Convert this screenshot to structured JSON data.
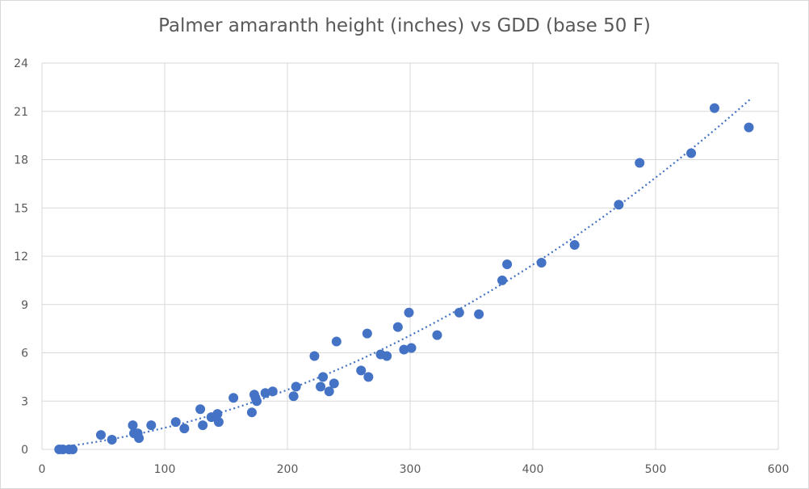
{
  "chart_data": {
    "type": "scatter",
    "title": "Palmer amaranth height (inches) vs GDD (base 50 F)",
    "xlabel": "",
    "ylabel": "",
    "xlim": [
      0,
      600
    ],
    "ylim": [
      0,
      24
    ],
    "x_ticks": [
      0,
      100,
      200,
      300,
      400,
      500,
      600
    ],
    "y_ticks": [
      0,
      3,
      6,
      9,
      12,
      15,
      18,
      21,
      24
    ],
    "grid": true,
    "legend": "none",
    "marker_color": "#4472c4",
    "trendline": {
      "type": "polynomial",
      "order": 2,
      "style": "dotted",
      "x_range": [
        15,
        577
      ]
    },
    "points": [
      {
        "x": 14,
        "y": 0
      },
      {
        "x": 17,
        "y": 0
      },
      {
        "x": 22,
        "y": 0
      },
      {
        "x": 25,
        "y": 0
      },
      {
        "x": 48,
        "y": 0.9
      },
      {
        "x": 57,
        "y": 0.6
      },
      {
        "x": 74,
        "y": 1.5
      },
      {
        "x": 75,
        "y": 1.0
      },
      {
        "x": 78,
        "y": 1.0
      },
      {
        "x": 79,
        "y": 0.7
      },
      {
        "x": 89,
        "y": 1.5
      },
      {
        "x": 109,
        "y": 1.7
      },
      {
        "x": 116,
        "y": 1.3
      },
      {
        "x": 129,
        "y": 2.5
      },
      {
        "x": 131,
        "y": 1.5
      },
      {
        "x": 138,
        "y": 2.0
      },
      {
        "x": 143,
        "y": 2.2
      },
      {
        "x": 144,
        "y": 1.7
      },
      {
        "x": 156,
        "y": 3.2
      },
      {
        "x": 171,
        "y": 2.3
      },
      {
        "x": 173,
        "y": 3.4
      },
      {
        "x": 174,
        "y": 3.2
      },
      {
        "x": 175,
        "y": 3.0
      },
      {
        "x": 182,
        "y": 3.5
      },
      {
        "x": 188,
        "y": 3.6
      },
      {
        "x": 205,
        "y": 3.3
      },
      {
        "x": 207,
        "y": 3.9
      },
      {
        "x": 222,
        "y": 5.8
      },
      {
        "x": 227,
        "y": 3.9
      },
      {
        "x": 229,
        "y": 4.5
      },
      {
        "x": 234,
        "y": 3.6
      },
      {
        "x": 238,
        "y": 4.1
      },
      {
        "x": 240,
        "y": 6.7
      },
      {
        "x": 260,
        "y": 4.9
      },
      {
        "x": 265,
        "y": 7.2
      },
      {
        "x": 266,
        "y": 4.5
      },
      {
        "x": 276,
        "y": 5.9
      },
      {
        "x": 281,
        "y": 5.8
      },
      {
        "x": 290,
        "y": 7.6
      },
      {
        "x": 295,
        "y": 6.2
      },
      {
        "x": 299,
        "y": 8.5
      },
      {
        "x": 301,
        "y": 6.3
      },
      {
        "x": 322,
        "y": 7.1
      },
      {
        "x": 340,
        "y": 8.5
      },
      {
        "x": 356,
        "y": 8.4
      },
      {
        "x": 375,
        "y": 10.5
      },
      {
        "x": 379,
        "y": 11.5
      },
      {
        "x": 407,
        "y": 11.6
      },
      {
        "x": 434,
        "y": 12.7
      },
      {
        "x": 470,
        "y": 15.2
      },
      {
        "x": 487,
        "y": 17.8
      },
      {
        "x": 529,
        "y": 18.4
      },
      {
        "x": 548,
        "y": 21.2
      },
      {
        "x": 576,
        "y": 20.0
      }
    ]
  }
}
